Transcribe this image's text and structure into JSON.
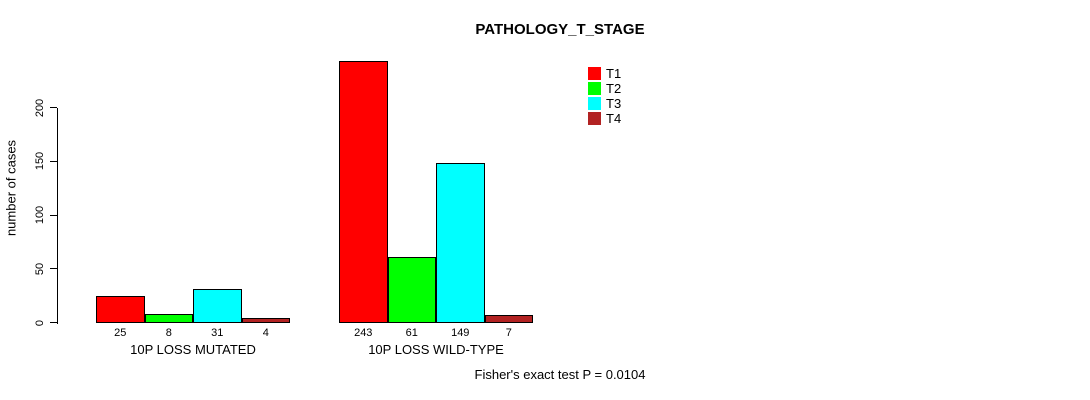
{
  "title": "PATHOLOGY_T_STAGE",
  "footnote": "Fisher's exact test P = 0.0104",
  "colors": {
    "background": "#ffffff",
    "axis": "#000000",
    "bar_border": "#000000",
    "t1": "#ff0000",
    "t2": "#00ff00",
    "t3": "#00ffff",
    "t4": "#b22222"
  },
  "chart_data": {
    "type": "bar",
    "title": "PATHOLOGY_T_STAGE",
    "xlabel": "",
    "ylabel": "number of cases",
    "categories": [
      "10P LOSS MUTATED",
      "10P LOSS WILD-TYPE"
    ],
    "series": [
      {
        "name": "T1",
        "color": "#ff0000",
        "values": [
          25,
          243
        ]
      },
      {
        "name": "T2",
        "color": "#00ff00",
        "values": [
          8,
          61
        ]
      },
      {
        "name": "T3",
        "color": "#00ffff",
        "values": [
          31,
          149
        ]
      },
      {
        "name": "T4",
        "color": "#b22222",
        "values": [
          4,
          7
        ]
      }
    ],
    "bar_value_labels": [
      [
        "25",
        "8",
        "31",
        "4"
      ],
      [
        "243",
        "61",
        "149",
        "7"
      ]
    ],
    "yticks": [
      0,
      50,
      100,
      150,
      200
    ],
    "ylim": [
      0,
      243
    ],
    "grid": false,
    "legend_position": "top-right",
    "legend_entries": [
      "T1",
      "T2",
      "T3",
      "T4"
    ],
    "annotation": "Fisher's exact test P = 0.0104"
  }
}
